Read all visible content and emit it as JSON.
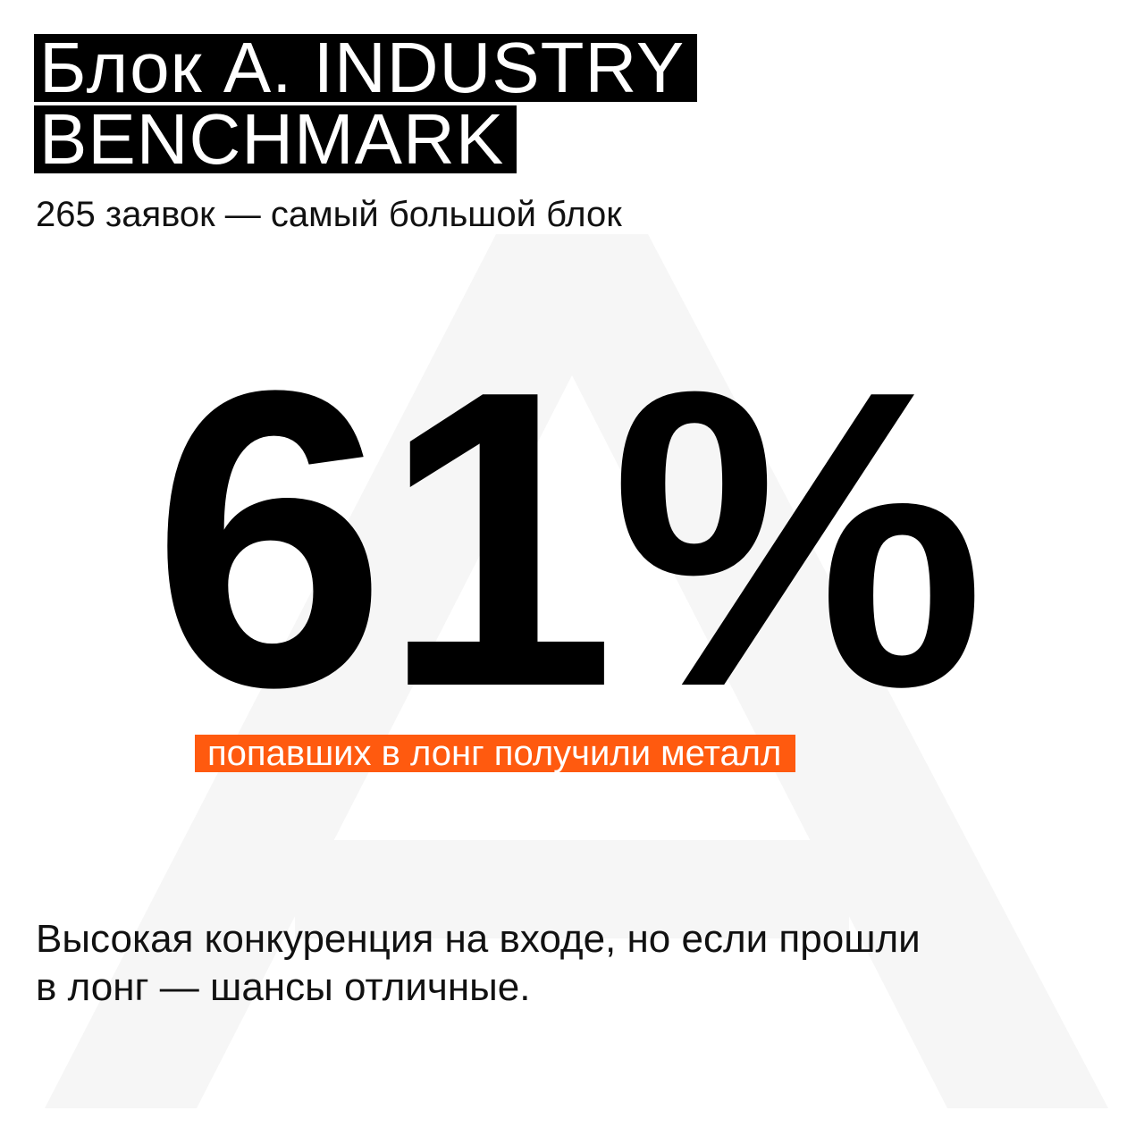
{
  "header": {
    "title_lines": [
      "Блок A. INDUSTRY",
      "BENCHMARK"
    ],
    "subtitle": "265 заявок — самый большой блок"
  },
  "stat": {
    "value": "61%",
    "caption": "попавших в лонг получили металл"
  },
  "body": {
    "lines": [
      "Высокая конкуренция на входе, но если прошли",
      "в лонг — шансы отличные."
    ]
  }
}
